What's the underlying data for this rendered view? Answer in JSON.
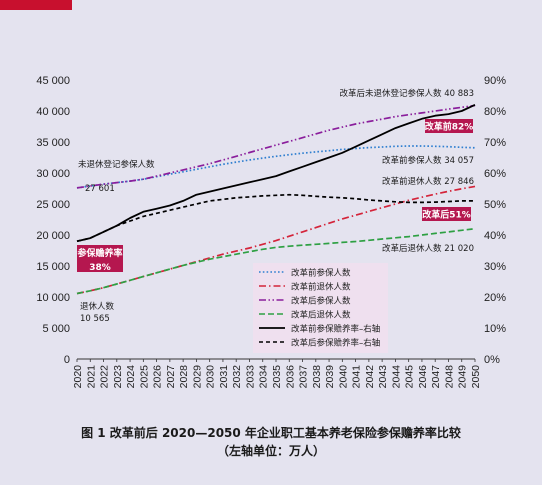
{
  "figure": {
    "caption_line1": "图 1   改革前后 2020—2050 年企业职工基本养老保险参保赡养率比较",
    "caption_line2": "（左轴单位：万人）",
    "accent_color": "#c8102e"
  },
  "chart_data": {
    "type": "line",
    "x": [
      2020,
      2021,
      2022,
      2023,
      2024,
      2025,
      2026,
      2027,
      2028,
      2029,
      2030,
      2031,
      2032,
      2033,
      2034,
      2035,
      2036,
      2037,
      2038,
      2039,
      2040,
      2041,
      2042,
      2043,
      2044,
      2045,
      2046,
      2047,
      2048,
      2049,
      2050
    ],
    "x_tick_labels": [
      "2020",
      "2021",
      "2022",
      "2023",
      "2024",
      "2025",
      "2026",
      "2027",
      "2028",
      "2029",
      "2030",
      "2031",
      "2032",
      "2033",
      "2034",
      "2035",
      "2036",
      "2037",
      "2038",
      "2039",
      "2040",
      "2041",
      "2042",
      "2043",
      "2044",
      "2045",
      "2046",
      "2047",
      "2048",
      "2049",
      "2050"
    ],
    "y_left": {
      "min": 0,
      "max": 45000,
      "ticks": [
        0,
        5000,
        10000,
        15000,
        20000,
        25000,
        30000,
        35000,
        40000,
        45000
      ],
      "tick_labels": [
        "0",
        "5 000",
        "10 000",
        "15 000",
        "20 000",
        "25 000",
        "30 000",
        "35 000",
        "40 000",
        "45 000"
      ]
    },
    "y_right": {
      "min": 0,
      "max": 90,
      "ticks": [
        0,
        10,
        20,
        30,
        40,
        50,
        60,
        70,
        80,
        90
      ],
      "tick_labels": [
        "0%",
        "10%",
        "20%",
        "30%",
        "40%",
        "50%",
        "60%",
        "70%",
        "80%",
        "90%"
      ]
    },
    "grid": false,
    "legend_position": "bottom-right",
    "series": [
      {
        "name": "改革前参保人数",
        "axis": "left",
        "color": "#2f7fd0",
        "style": "dotted",
        "values": [
          27601,
          27900,
          28200,
          28450,
          28700,
          29000,
          29400,
          29800,
          30200,
          30600,
          31000,
          31400,
          31750,
          32100,
          32400,
          32700,
          32950,
          33200,
          33400,
          33600,
          33800,
          33950,
          34100,
          34200,
          34300,
          34350,
          34350,
          34300,
          34250,
          34150,
          34057
        ]
      },
      {
        "name": "改革前退休人数",
        "axis": "left",
        "color": "#d4243a",
        "style": "dashdot",
        "values": [
          10565,
          11000,
          11500,
          12100,
          12700,
          13300,
          13900,
          14500,
          15100,
          15700,
          16300,
          16900,
          17400,
          17900,
          18500,
          19100,
          19800,
          20500,
          21200,
          21900,
          22600,
          23200,
          23800,
          24400,
          25000,
          25600,
          26100,
          26600,
          27050,
          27450,
          27846
        ]
      },
      {
        "name": "改革后参保人数",
        "axis": "left",
        "color": "#8a1e9c",
        "style": "dashdotdot",
        "values": [
          27601,
          27900,
          28200,
          28450,
          28700,
          29000,
          29500,
          30000,
          30500,
          31000,
          31500,
          32100,
          32700,
          33300,
          33900,
          34500,
          35100,
          35700,
          36300,
          36900,
          37400,
          37900,
          38300,
          38700,
          39100,
          39400,
          39700,
          40000,
          40300,
          40600,
          40883
        ]
      },
      {
        "name": "改革后退休人数",
        "axis": "left",
        "color": "#2ea043",
        "style": "dashed",
        "values": [
          10565,
          11000,
          11500,
          12100,
          12700,
          13300,
          13900,
          14500,
          15100,
          15600,
          16100,
          16500,
          16900,
          17300,
          17700,
          18000,
          18200,
          18350,
          18500,
          18650,
          18800,
          18950,
          19150,
          19350,
          19550,
          19750,
          20000,
          20250,
          20500,
          20750,
          21020
        ]
      },
      {
        "name": "改革前参保赡养率–右轴",
        "axis": "right",
        "color": "#000000",
        "style": "solid",
        "values": [
          38,
          39,
          41,
          43,
          45.5,
          47.5,
          48.5,
          49.5,
          51,
          53,
          54,
          55,
          56,
          57,
          58,
          59,
          60.5,
          62,
          63.5,
          65,
          66.5,
          68.5,
          70.5,
          72.5,
          74.5,
          76,
          77.5,
          78.5,
          79,
          80,
          82
        ]
      },
      {
        "name": "改革后参保赡养率–右轴",
        "axis": "right",
        "color": "#000000",
        "style": "shortdash",
        "values": [
          38,
          39,
          41,
          43,
          44.5,
          46,
          47,
          48,
          49,
          50,
          51,
          51.5,
          52,
          52.3,
          52.6,
          52.8,
          53,
          52.8,
          52.5,
          52.2,
          52,
          51.7,
          51.3,
          51,
          50.7,
          50.5,
          50.5,
          50.6,
          50.8,
          51,
          51
        ]
      }
    ],
    "annotations": {
      "pre_insured_start": {
        "name": "未退休登记参保人数",
        "value": "27 601"
      },
      "retired_start": {
        "name": "退休人数",
        "value": "10 565"
      },
      "ratio_start_label": "参保赡养率",
      "ratio_start_value": "38%",
      "post_insured_end": "改革后未退休登记参保人数 40 883",
      "pre_insured_end": "改革前参保人数 34 057",
      "pre_retired_end": "改革前退休人数 27 846",
      "post_retired_end": "改革后退休人数 21 020",
      "ratio_pre_end": "改革前82%",
      "ratio_post_end": "改革后51%"
    }
  }
}
